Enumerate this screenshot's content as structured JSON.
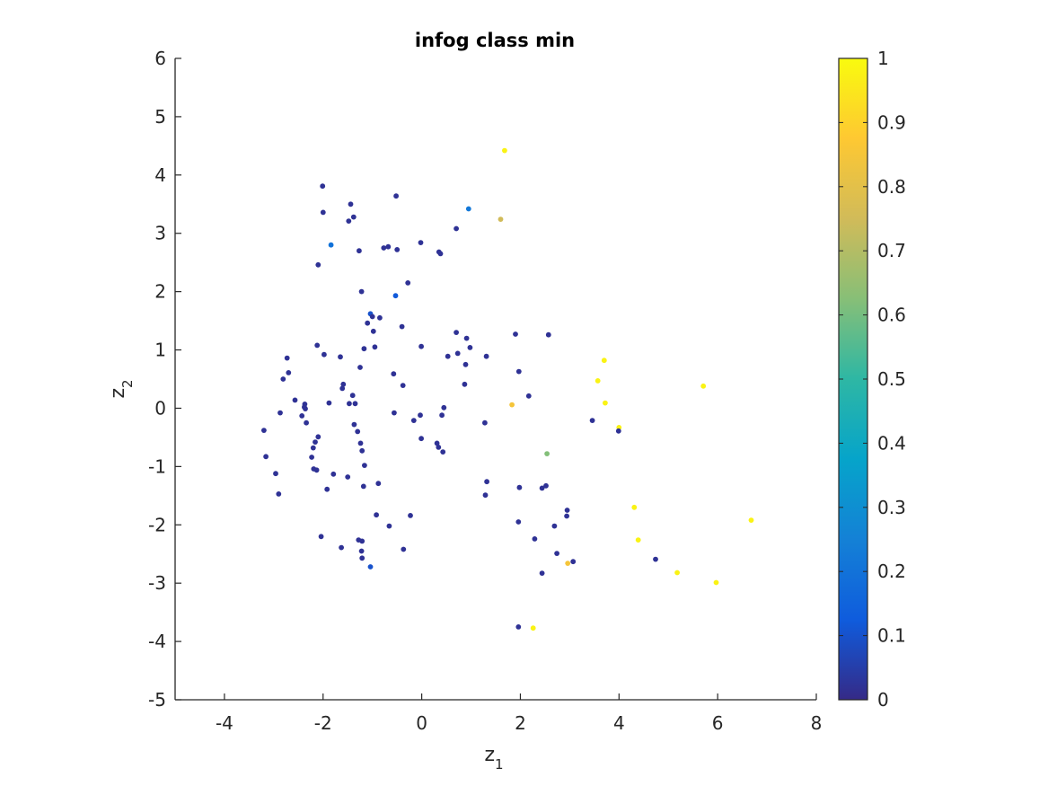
{
  "chart_data": {
    "type": "scatter",
    "title": "infog class min",
    "xlabel": {
      "base": "z",
      "sub": "1"
    },
    "ylabel": {
      "base": "z",
      "sub": "2"
    },
    "xlim": [
      -5,
      8
    ],
    "ylim": [
      -5,
      6
    ],
    "xticks": [
      -4,
      -2,
      0,
      2,
      4,
      6,
      8
    ],
    "yticks": [
      -5,
      -4,
      -3,
      -2,
      -1,
      0,
      1,
      2,
      3,
      4,
      5,
      6
    ],
    "grid": false,
    "colorbar": {
      "colormap": "parula",
      "range": [
        0,
        1
      ],
      "ticks": [
        0,
        0.1,
        0.2,
        0.3,
        0.4,
        0.5,
        0.6,
        0.7,
        0.8,
        0.9,
        1
      ],
      "tick_labels": [
        "0",
        "0.1",
        "0.2",
        "0.3",
        "0.4",
        "0.5",
        "0.6",
        "0.7",
        "0.8",
        "0.9",
        "1"
      ],
      "colors": [
        "#352a87",
        "#0f5cdd",
        "#1481d6",
        "#06a4ca",
        "#2eb7a4",
        "#87bf77",
        "#d1bb59",
        "#fec832",
        "#f9fb0e"
      ]
    },
    "points": [
      {
        "x": 1.68,
        "y": 4.42,
        "c": 0.98
      },
      {
        "x": -2.01,
        "y": 3.81,
        "c": 0.02
      },
      {
        "x": -0.52,
        "y": 3.64,
        "c": 0.02
      },
      {
        "x": -1.44,
        "y": 3.5,
        "c": 0.02
      },
      {
        "x": 0.95,
        "y": 3.42,
        "c": 0.22
      },
      {
        "x": -2.0,
        "y": 3.36,
        "c": 0.02
      },
      {
        "x": -1.38,
        "y": 3.28,
        "c": 0.02
      },
      {
        "x": 1.6,
        "y": 3.24,
        "c": 0.75
      },
      {
        "x": -1.48,
        "y": 3.21,
        "c": 0.02
      },
      {
        "x": 0.7,
        "y": 3.08,
        "c": 0.02
      },
      {
        "x": -0.02,
        "y": 2.84,
        "c": 0.02
      },
      {
        "x": -1.84,
        "y": 2.8,
        "c": 0.2
      },
      {
        "x": -0.68,
        "y": 2.77,
        "c": 0.02
      },
      {
        "x": -0.77,
        "y": 2.75,
        "c": 0.02
      },
      {
        "x": -0.5,
        "y": 2.72,
        "c": 0.02
      },
      {
        "x": -1.27,
        "y": 2.7,
        "c": 0.02
      },
      {
        "x": 0.35,
        "y": 2.68,
        "c": 0.02
      },
      {
        "x": 0.38,
        "y": 2.65,
        "c": 0.02
      },
      {
        "x": -2.1,
        "y": 2.46,
        "c": 0.02
      },
      {
        "x": -0.28,
        "y": 2.15,
        "c": 0.02
      },
      {
        "x": -1.22,
        "y": 2.0,
        "c": 0.02
      },
      {
        "x": -0.53,
        "y": 1.93,
        "c": 0.12
      },
      {
        "x": -1.04,
        "y": 1.62,
        "c": 0.1
      },
      {
        "x": -1.0,
        "y": 1.57,
        "c": 0.02
      },
      {
        "x": -0.85,
        "y": 1.55,
        "c": 0.02
      },
      {
        "x": -1.1,
        "y": 1.46,
        "c": 0.02
      },
      {
        "x": -0.4,
        "y": 1.4,
        "c": 0.02
      },
      {
        "x": -0.98,
        "y": 1.32,
        "c": 0.02
      },
      {
        "x": 0.7,
        "y": 1.3,
        "c": 0.02
      },
      {
        "x": 1.9,
        "y": 1.27,
        "c": 0.02
      },
      {
        "x": 2.57,
        "y": 1.26,
        "c": 0.02
      },
      {
        "x": 0.91,
        "y": 1.2,
        "c": 0.02
      },
      {
        "x": -2.12,
        "y": 1.08,
        "c": 0.02
      },
      {
        "x": -0.01,
        "y": 1.06,
        "c": 0.02
      },
      {
        "x": -0.95,
        "y": 1.05,
        "c": 0.02
      },
      {
        "x": 0.98,
        "y": 1.04,
        "c": 0.02
      },
      {
        "x": -1.17,
        "y": 1.02,
        "c": 0.02
      },
      {
        "x": 0.73,
        "y": 0.94,
        "c": 0.02
      },
      {
        "x": -1.98,
        "y": 0.92,
        "c": 0.02
      },
      {
        "x": 0.53,
        "y": 0.89,
        "c": 0.02
      },
      {
        "x": 1.31,
        "y": 0.89,
        "c": 0.02
      },
      {
        "x": -1.65,
        "y": 0.88,
        "c": 0.02
      },
      {
        "x": -2.73,
        "y": 0.86,
        "c": 0.02
      },
      {
        "x": 3.7,
        "y": 0.82,
        "c": 0.98
      },
      {
        "x": 0.89,
        "y": 0.75,
        "c": 0.02
      },
      {
        "x": -1.25,
        "y": 0.7,
        "c": 0.02
      },
      {
        "x": 1.97,
        "y": 0.63,
        "c": 0.02
      },
      {
        "x": -2.7,
        "y": 0.61,
        "c": 0.02
      },
      {
        "x": -0.57,
        "y": 0.59,
        "c": 0.02
      },
      {
        "x": -2.81,
        "y": 0.5,
        "c": 0.02
      },
      {
        "x": 3.57,
        "y": 0.47,
        "c": 0.98
      },
      {
        "x": 0.87,
        "y": 0.41,
        "c": 0.02
      },
      {
        "x": -1.59,
        "y": 0.41,
        "c": 0.02
      },
      {
        "x": -0.38,
        "y": 0.39,
        "c": 0.02
      },
      {
        "x": 5.71,
        "y": 0.38,
        "c": 0.98
      },
      {
        "x": -1.61,
        "y": 0.34,
        "c": 0.02
      },
      {
        "x": 2.17,
        "y": 0.21,
        "c": 0.02
      },
      {
        "x": -1.4,
        "y": 0.22,
        "c": 0.02
      },
      {
        "x": -2.57,
        "y": 0.14,
        "c": 0.02
      },
      {
        "x": -1.88,
        "y": 0.09,
        "c": 0.02
      },
      {
        "x": -1.47,
        "y": 0.08,
        "c": 0.02
      },
      {
        "x": -1.35,
        "y": 0.08,
        "c": 0.02
      },
      {
        "x": 3.72,
        "y": 0.09,
        "c": 0.98
      },
      {
        "x": -2.37,
        "y": 0.07,
        "c": 0.02
      },
      {
        "x": 1.83,
        "y": 0.06,
        "c": 0.85
      },
      {
        "x": -2.38,
        "y": 0.02,
        "c": 0.02
      },
      {
        "x": 0.45,
        "y": 0.01,
        "c": 0.02
      },
      {
        "x": -2.36,
        "y": -0.01,
        "c": 0.02
      },
      {
        "x": -2.87,
        "y": -0.08,
        "c": 0.02
      },
      {
        "x": -0.56,
        "y": -0.08,
        "c": 0.02
      },
      {
        "x": -2.43,
        "y": -0.13,
        "c": 0.02
      },
      {
        "x": 0.41,
        "y": -0.12,
        "c": 0.02
      },
      {
        "x": -0.03,
        "y": -0.12,
        "c": 0.02
      },
      {
        "x": -0.16,
        "y": -0.21,
        "c": 0.02
      },
      {
        "x": 3.46,
        "y": -0.21,
        "c": 0.02
      },
      {
        "x": -2.34,
        "y": -0.25,
        "c": 0.02
      },
      {
        "x": 1.28,
        "y": -0.25,
        "c": 0.02
      },
      {
        "x": -1.37,
        "y": -0.28,
        "c": 0.02
      },
      {
        "x": 4.0,
        "y": -0.33,
        "c": 0.98
      },
      {
        "x": -3.2,
        "y": -0.38,
        "c": 0.02
      },
      {
        "x": -1.3,
        "y": -0.4,
        "c": 0.02
      },
      {
        "x": 3.99,
        "y": -0.39,
        "c": 0.02
      },
      {
        "x": -2.1,
        "y": -0.49,
        "c": 0.02
      },
      {
        "x": -0.01,
        "y": -0.52,
        "c": 0.02
      },
      {
        "x": -1.24,
        "y": -0.6,
        "c": 0.02
      },
      {
        "x": -2.16,
        "y": -0.58,
        "c": 0.02
      },
      {
        "x": 0.31,
        "y": -0.6,
        "c": 0.02
      },
      {
        "x": 0.34,
        "y": -0.67,
        "c": 0.02
      },
      {
        "x": -2.2,
        "y": -0.68,
        "c": 0.02
      },
      {
        "x": -1.21,
        "y": -0.73,
        "c": 0.02
      },
      {
        "x": 0.43,
        "y": -0.75,
        "c": 0.02
      },
      {
        "x": 2.54,
        "y": -0.78,
        "c": 0.62
      },
      {
        "x": -3.16,
        "y": -0.83,
        "c": 0.02
      },
      {
        "x": -2.23,
        "y": -0.84,
        "c": 0.02
      },
      {
        "x": -1.16,
        "y": -0.98,
        "c": 0.02
      },
      {
        "x": -2.19,
        "y": -1.04,
        "c": 0.02
      },
      {
        "x": -2.13,
        "y": -1.06,
        "c": 0.02
      },
      {
        "x": -2.96,
        "y": -1.12,
        "c": 0.02
      },
      {
        "x": -1.79,
        "y": -1.13,
        "c": 0.02
      },
      {
        "x": -1.5,
        "y": -1.18,
        "c": 0.02
      },
      {
        "x": 1.32,
        "y": -1.26,
        "c": 0.02
      },
      {
        "x": -0.88,
        "y": -1.29,
        "c": 0.02
      },
      {
        "x": -1.18,
        "y": -1.34,
        "c": 0.02
      },
      {
        "x": 2.52,
        "y": -1.33,
        "c": 0.02
      },
      {
        "x": 1.98,
        "y": -1.36,
        "c": 0.02
      },
      {
        "x": 2.44,
        "y": -1.37,
        "c": 0.02
      },
      {
        "x": -1.92,
        "y": -1.39,
        "c": 0.02
      },
      {
        "x": -2.9,
        "y": -1.47,
        "c": 0.02
      },
      {
        "x": 1.29,
        "y": -1.49,
        "c": 0.02
      },
      {
        "x": 4.31,
        "y": -1.7,
        "c": 0.98
      },
      {
        "x": 2.95,
        "y": -1.75,
        "c": 0.02
      },
      {
        "x": 2.94,
        "y": -1.85,
        "c": 0.02
      },
      {
        "x": -0.23,
        "y": -1.84,
        "c": 0.02
      },
      {
        "x": -0.92,
        "y": -1.83,
        "c": 0.02
      },
      {
        "x": 6.68,
        "y": -1.92,
        "c": 0.98
      },
      {
        "x": 1.96,
        "y": -1.95,
        "c": 0.02
      },
      {
        "x": 2.69,
        "y": -2.02,
        "c": 0.02
      },
      {
        "x": -0.66,
        "y": -2.02,
        "c": 0.02
      },
      {
        "x": -2.04,
        "y": -2.2,
        "c": 0.02
      },
      {
        "x": 2.29,
        "y": -2.24,
        "c": 0.02
      },
      {
        "x": 4.39,
        "y": -2.26,
        "c": 0.98
      },
      {
        "x": -1.28,
        "y": -2.26,
        "c": 0.02
      },
      {
        "x": -1.21,
        "y": -2.28,
        "c": 0.02
      },
      {
        "x": -1.63,
        "y": -2.39,
        "c": 0.02
      },
      {
        "x": -0.37,
        "y": -2.42,
        "c": 0.02
      },
      {
        "x": -1.22,
        "y": -2.45,
        "c": 0.02
      },
      {
        "x": 2.74,
        "y": -2.49,
        "c": 0.02
      },
      {
        "x": -1.21,
        "y": -2.57,
        "c": 0.02
      },
      {
        "x": 4.74,
        "y": -2.59,
        "c": 0.02
      },
      {
        "x": 3.07,
        "y": -2.63,
        "c": 0.02
      },
      {
        "x": 2.96,
        "y": -2.66,
        "c": 0.85
      },
      {
        "x": -1.04,
        "y": -2.72,
        "c": 0.1
      },
      {
        "x": 5.18,
        "y": -2.82,
        "c": 0.98
      },
      {
        "x": 2.44,
        "y": -2.83,
        "c": 0.02
      },
      {
        "x": 5.97,
        "y": -2.99,
        "c": 0.98
      },
      {
        "x": 1.96,
        "y": -3.75,
        "c": 0.02
      },
      {
        "x": 2.26,
        "y": -3.77,
        "c": 0.98
      }
    ]
  }
}
